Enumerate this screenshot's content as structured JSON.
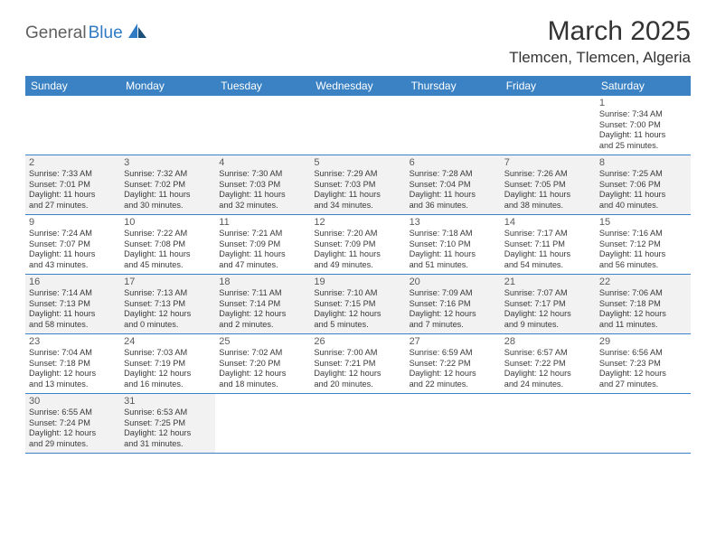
{
  "logo": {
    "text1": "General",
    "text2": "Blue"
  },
  "title": "March 2025",
  "location": "Tlemcen, Tlemcen, Algeria",
  "colors": {
    "header_bg": "#3a82c4",
    "header_text": "#ffffff",
    "row_alt_bg": "#f2f2f2",
    "border": "#3a82c4",
    "logo_gray": "#5f5f5f",
    "logo_blue": "#2f7bc4"
  },
  "fonts": {
    "title_size": 30,
    "location_size": 17,
    "header_size": 12,
    "daynum_size": 11,
    "detail_size": 9.2
  },
  "day_names": [
    "Sunday",
    "Monday",
    "Tuesday",
    "Wednesday",
    "Thursday",
    "Friday",
    "Saturday"
  ],
  "weeks": [
    [
      {
        "empty": true
      },
      {
        "empty": true
      },
      {
        "empty": true
      },
      {
        "empty": true
      },
      {
        "empty": true
      },
      {
        "empty": true
      },
      {
        "num": "1",
        "sunrise": "Sunrise: 7:34 AM",
        "sunset": "Sunset: 7:00 PM",
        "day1": "Daylight: 11 hours",
        "day2": "and 25 minutes."
      }
    ],
    [
      {
        "num": "2",
        "sunrise": "Sunrise: 7:33 AM",
        "sunset": "Sunset: 7:01 PM",
        "day1": "Daylight: 11 hours",
        "day2": "and 27 minutes."
      },
      {
        "num": "3",
        "sunrise": "Sunrise: 7:32 AM",
        "sunset": "Sunset: 7:02 PM",
        "day1": "Daylight: 11 hours",
        "day2": "and 30 minutes."
      },
      {
        "num": "4",
        "sunrise": "Sunrise: 7:30 AM",
        "sunset": "Sunset: 7:03 PM",
        "day1": "Daylight: 11 hours",
        "day2": "and 32 minutes."
      },
      {
        "num": "5",
        "sunrise": "Sunrise: 7:29 AM",
        "sunset": "Sunset: 7:03 PM",
        "day1": "Daylight: 11 hours",
        "day2": "and 34 minutes."
      },
      {
        "num": "6",
        "sunrise": "Sunrise: 7:28 AM",
        "sunset": "Sunset: 7:04 PM",
        "day1": "Daylight: 11 hours",
        "day2": "and 36 minutes."
      },
      {
        "num": "7",
        "sunrise": "Sunrise: 7:26 AM",
        "sunset": "Sunset: 7:05 PM",
        "day1": "Daylight: 11 hours",
        "day2": "and 38 minutes."
      },
      {
        "num": "8",
        "sunrise": "Sunrise: 7:25 AM",
        "sunset": "Sunset: 7:06 PM",
        "day1": "Daylight: 11 hours",
        "day2": "and 40 minutes."
      }
    ],
    [
      {
        "num": "9",
        "sunrise": "Sunrise: 7:24 AM",
        "sunset": "Sunset: 7:07 PM",
        "day1": "Daylight: 11 hours",
        "day2": "and 43 minutes."
      },
      {
        "num": "10",
        "sunrise": "Sunrise: 7:22 AM",
        "sunset": "Sunset: 7:08 PM",
        "day1": "Daylight: 11 hours",
        "day2": "and 45 minutes."
      },
      {
        "num": "11",
        "sunrise": "Sunrise: 7:21 AM",
        "sunset": "Sunset: 7:09 PM",
        "day1": "Daylight: 11 hours",
        "day2": "and 47 minutes."
      },
      {
        "num": "12",
        "sunrise": "Sunrise: 7:20 AM",
        "sunset": "Sunset: 7:09 PM",
        "day1": "Daylight: 11 hours",
        "day2": "and 49 minutes."
      },
      {
        "num": "13",
        "sunrise": "Sunrise: 7:18 AM",
        "sunset": "Sunset: 7:10 PM",
        "day1": "Daylight: 11 hours",
        "day2": "and 51 minutes."
      },
      {
        "num": "14",
        "sunrise": "Sunrise: 7:17 AM",
        "sunset": "Sunset: 7:11 PM",
        "day1": "Daylight: 11 hours",
        "day2": "and 54 minutes."
      },
      {
        "num": "15",
        "sunrise": "Sunrise: 7:16 AM",
        "sunset": "Sunset: 7:12 PM",
        "day1": "Daylight: 11 hours",
        "day2": "and 56 minutes."
      }
    ],
    [
      {
        "num": "16",
        "sunrise": "Sunrise: 7:14 AM",
        "sunset": "Sunset: 7:13 PM",
        "day1": "Daylight: 11 hours",
        "day2": "and 58 minutes."
      },
      {
        "num": "17",
        "sunrise": "Sunrise: 7:13 AM",
        "sunset": "Sunset: 7:13 PM",
        "day1": "Daylight: 12 hours",
        "day2": "and 0 minutes."
      },
      {
        "num": "18",
        "sunrise": "Sunrise: 7:11 AM",
        "sunset": "Sunset: 7:14 PM",
        "day1": "Daylight: 12 hours",
        "day2": "and 2 minutes."
      },
      {
        "num": "19",
        "sunrise": "Sunrise: 7:10 AM",
        "sunset": "Sunset: 7:15 PM",
        "day1": "Daylight: 12 hours",
        "day2": "and 5 minutes."
      },
      {
        "num": "20",
        "sunrise": "Sunrise: 7:09 AM",
        "sunset": "Sunset: 7:16 PM",
        "day1": "Daylight: 12 hours",
        "day2": "and 7 minutes."
      },
      {
        "num": "21",
        "sunrise": "Sunrise: 7:07 AM",
        "sunset": "Sunset: 7:17 PM",
        "day1": "Daylight: 12 hours",
        "day2": "and 9 minutes."
      },
      {
        "num": "22",
        "sunrise": "Sunrise: 7:06 AM",
        "sunset": "Sunset: 7:18 PM",
        "day1": "Daylight: 12 hours",
        "day2": "and 11 minutes."
      }
    ],
    [
      {
        "num": "23",
        "sunrise": "Sunrise: 7:04 AM",
        "sunset": "Sunset: 7:18 PM",
        "day1": "Daylight: 12 hours",
        "day2": "and 13 minutes."
      },
      {
        "num": "24",
        "sunrise": "Sunrise: 7:03 AM",
        "sunset": "Sunset: 7:19 PM",
        "day1": "Daylight: 12 hours",
        "day2": "and 16 minutes."
      },
      {
        "num": "25",
        "sunrise": "Sunrise: 7:02 AM",
        "sunset": "Sunset: 7:20 PM",
        "day1": "Daylight: 12 hours",
        "day2": "and 18 minutes."
      },
      {
        "num": "26",
        "sunrise": "Sunrise: 7:00 AM",
        "sunset": "Sunset: 7:21 PM",
        "day1": "Daylight: 12 hours",
        "day2": "and 20 minutes."
      },
      {
        "num": "27",
        "sunrise": "Sunrise: 6:59 AM",
        "sunset": "Sunset: 7:22 PM",
        "day1": "Daylight: 12 hours",
        "day2": "and 22 minutes."
      },
      {
        "num": "28",
        "sunrise": "Sunrise: 6:57 AM",
        "sunset": "Sunset: 7:22 PM",
        "day1": "Daylight: 12 hours",
        "day2": "and 24 minutes."
      },
      {
        "num": "29",
        "sunrise": "Sunrise: 6:56 AM",
        "sunset": "Sunset: 7:23 PM",
        "day1": "Daylight: 12 hours",
        "day2": "and 27 minutes."
      }
    ],
    [
      {
        "num": "30",
        "sunrise": "Sunrise: 6:55 AM",
        "sunset": "Sunset: 7:24 PM",
        "day1": "Daylight: 12 hours",
        "day2": "and 29 minutes."
      },
      {
        "num": "31",
        "sunrise": "Sunrise: 6:53 AM",
        "sunset": "Sunset: 7:25 PM",
        "day1": "Daylight: 12 hours",
        "day2": "and 31 minutes."
      },
      {
        "empty": true
      },
      {
        "empty": true
      },
      {
        "empty": true
      },
      {
        "empty": true
      },
      {
        "empty": true
      }
    ]
  ]
}
